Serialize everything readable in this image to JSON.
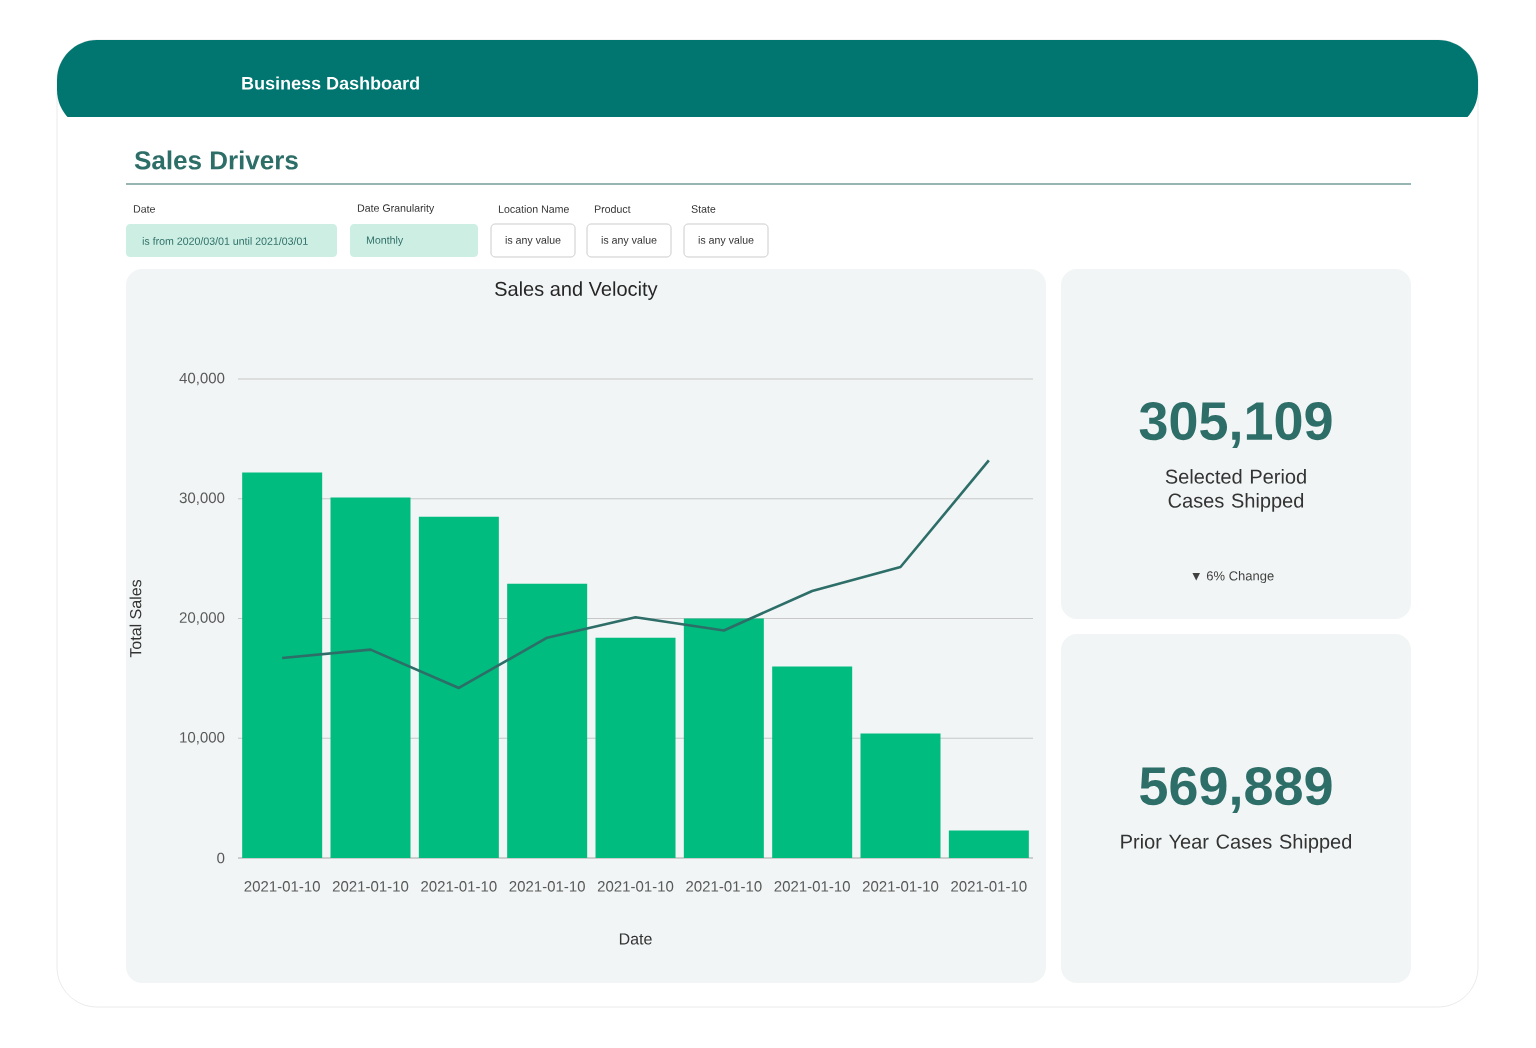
{
  "chart_data": [
    {
      "type": "other",
      "title": "Business Dashboard",
      "subtitle": "Sales Drivers",
      "annotations": [
        "Date",
        "is from 2020/03/01 until 2021/03/01",
        "Date Granularity",
        "Monthly",
        "Location Name",
        "is any value",
        "Product",
        "is any value",
        "State",
        "is any value"
      ]
    },
    {
      "type": "bar",
      "title": "Sales and Velocity",
      "xlabel": "Date",
      "ylabel": "Total Sales",
      "categories": [
        "2021-01-10",
        "2021-01-10",
        "2021-01-10",
        "2021-01-10",
        "2021-01-10",
        "2021-01-10",
        "2021-01-10",
        "2021-01-10",
        "2021-01-10"
      ],
      "series": [
        {
          "color": "#00bc7e",
          "values": [
            32200,
            30100,
            28500,
            22900,
            18400,
            20000,
            16000,
            10400,
            2300
          ]
        },
        {
          "type": "line",
          "color": "#2e6e68",
          "values": [
            16700,
            17400,
            14200,
            18400,
            20100,
            19000,
            22300,
            24300,
            33200
          ]
        }
      ],
      "ylim": [
        0,
        40000
      ],
      "yticks": [
        0,
        {
          "value": 10000,
          "label": "10,000"
        },
        {
          "value": 20000,
          "label": "20,000"
        },
        {
          "value": 30000,
          "label": "30,000"
        },
        {
          "value": 40000,
          "label": "40,000"
        }
      ],
      "grid": "y"
    },
    {
      "type": "other",
      "title": "305,109",
      "subtitle": "Selected Period Cases Shipped",
      "annotations": [
        "▼ 6% Change"
      ]
    },
    {
      "type": "other",
      "title": "569,889",
      "subtitle": "Prior Year Cases Shipped"
    }
  ]
}
